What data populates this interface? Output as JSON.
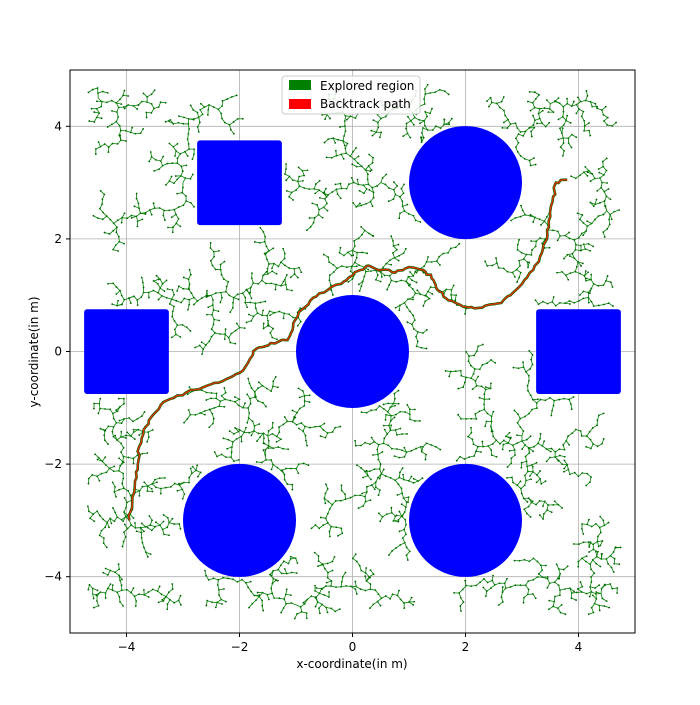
{
  "chart_data": {
    "type": "scatter",
    "title": "",
    "xlabel": "x-coordinate(in m)",
    "ylabel": "y-coordinate(in m)",
    "xlim": [
      -5,
      5
    ],
    "ylim": [
      -5,
      5
    ],
    "xticks": [
      -4,
      -2,
      0,
      2,
      4
    ],
    "yticks": [
      -4,
      -2,
      0,
      2,
      4
    ],
    "xtick_labels": [
      "−4",
      "−2",
      "0",
      "2",
      "4"
    ],
    "ytick_labels": [
      "−4",
      "−2",
      "0",
      "2",
      "4"
    ],
    "grid": true,
    "legend": {
      "placement": "top-center",
      "entries": [
        {
          "label": "Explored region",
          "color": "#008000"
        },
        {
          "label": "Backtrack path",
          "color": "#ff0000"
        }
      ]
    },
    "obstacles": [
      {
        "shape": "circle",
        "cx": 0,
        "cy": 0,
        "r": 1,
        "color": "#0000ff"
      },
      {
        "shape": "circle",
        "cx": 2,
        "cy": 3,
        "r": 1,
        "color": "#0000ff"
      },
      {
        "shape": "circle",
        "cx": -2,
        "cy": -3,
        "r": 1,
        "color": "#0000ff"
      },
      {
        "shape": "circle",
        "cx": 2,
        "cy": -3,
        "r": 1,
        "color": "#0000ff"
      },
      {
        "shape": "rect",
        "x0": -2.75,
        "y0": 2.25,
        "x1": -1.25,
        "y1": 3.75,
        "color": "#0000ff"
      },
      {
        "shape": "rect",
        "x0": -4.75,
        "y0": -0.75,
        "x1": -3.25,
        "y1": 0.75,
        "color": "#0000ff"
      },
      {
        "shape": "rect",
        "x0": 3.25,
        "y0": -0.75,
        "x1": 4.75,
        "y1": 0.75,
        "color": "#0000ff"
      }
    ],
    "backtrack_path": [
      [
        -3.95,
        -3.0
      ],
      [
        -3.9,
        -2.7
      ],
      [
        -3.85,
        -2.3
      ],
      [
        -3.8,
        -2.0
      ],
      [
        -3.78,
        -1.7
      ],
      [
        -3.7,
        -1.4
      ],
      [
        -3.55,
        -1.15
      ],
      [
        -3.35,
        -0.9
      ],
      [
        -3.1,
        -0.78
      ],
      [
        -2.8,
        -0.68
      ],
      [
        -2.5,
        -0.58
      ],
      [
        -2.25,
        -0.5
      ],
      [
        -2.0,
        -0.38
      ],
      [
        -1.85,
        -0.2
      ],
      [
        -1.7,
        0.05
      ],
      [
        -1.45,
        0.15
      ],
      [
        -1.15,
        0.2
      ],
      [
        -1.05,
        0.45
      ],
      [
        -0.95,
        0.7
      ],
      [
        -0.75,
        0.9
      ],
      [
        -0.5,
        1.05
      ],
      [
        -0.2,
        1.2
      ],
      [
        0.0,
        1.35
      ],
      [
        0.25,
        1.52
      ],
      [
        0.5,
        1.45
      ],
      [
        0.75,
        1.4
      ],
      [
        1.0,
        1.5
      ],
      [
        1.25,
        1.45
      ],
      [
        1.4,
        1.3
      ],
      [
        1.5,
        1.1
      ],
      [
        1.65,
        0.95
      ],
      [
        1.85,
        0.85
      ],
      [
        2.05,
        0.78
      ],
      [
        2.3,
        0.78
      ],
      [
        2.55,
        0.85
      ],
      [
        2.8,
        1.0
      ],
      [
        3.0,
        1.2
      ],
      [
        3.2,
        1.45
      ],
      [
        3.35,
        1.75
      ],
      [
        3.45,
        2.05
      ],
      [
        3.5,
        2.4
      ],
      [
        3.55,
        2.75
      ],
      [
        3.6,
        3.0
      ],
      [
        3.8,
        3.05
      ]
    ],
    "explored_region": {
      "description_level": "tree",
      "seed": 42,
      "n_points": 2400
    }
  }
}
